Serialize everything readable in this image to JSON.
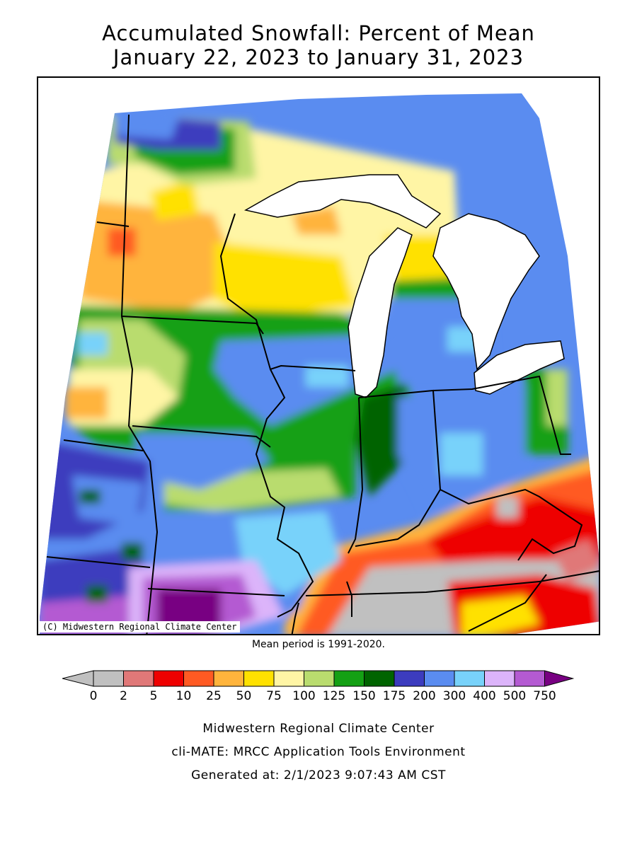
{
  "title_line1": "Accumulated Snowfall: Percent of Mean",
  "title_line2": "January 22, 2023 to January 31, 2023",
  "copyright": "(C) Midwestern Regional Climate Center",
  "mean_period": "Mean period is 1991-2020.",
  "legend": {
    "labels": [
      "0",
      "2",
      "5",
      "10",
      "25",
      "50",
      "75",
      "100",
      "125",
      "150",
      "175",
      "200",
      "300",
      "400",
      "500",
      "750"
    ],
    "colors": [
      "#c0c0c0",
      "#e07878",
      "#ee0000",
      "#ff5a23",
      "#ffb43c",
      "#ffe100",
      "#fff5a5",
      "#b9dc6e",
      "#14a014",
      "#006400",
      "#3c3cbe",
      "#5a8cf0",
      "#78d2fa",
      "#dcb4fa",
      "#b45ad2",
      "#780082"
    ],
    "below_color": "#c0c0c0",
    "above_color": "#780082"
  },
  "footer": {
    "line1": "Midwestern Regional Climate Center",
    "line2": "cli-MATE: MRCC Application Tools Environment",
    "line3": "Generated at: 2/1/2023 9:07:43 AM CST"
  }
}
